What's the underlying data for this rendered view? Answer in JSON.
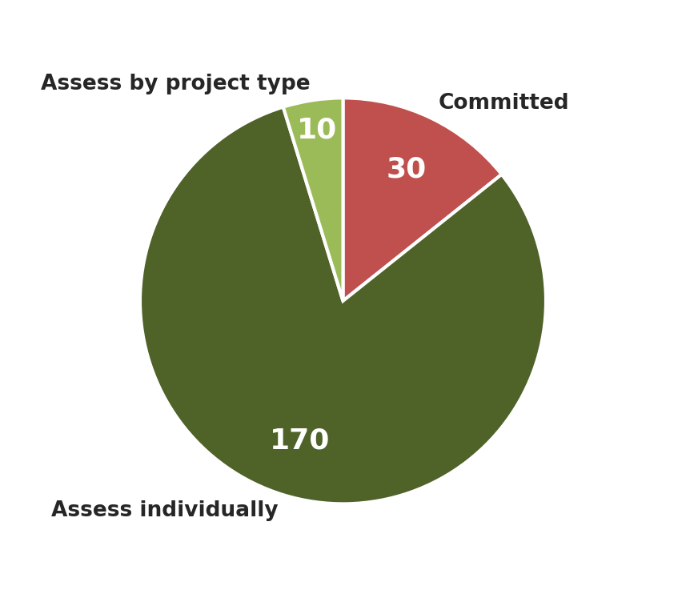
{
  "chart_data": {
    "type": "pie",
    "categories": [
      "Committed",
      "Assess individually",
      "Assess by project type"
    ],
    "values": [
      30,
      170,
      10
    ],
    "colors": [
      "#c0504d",
      "#4f6228",
      "#9bbb59"
    ],
    "data_labels": true
  }
}
